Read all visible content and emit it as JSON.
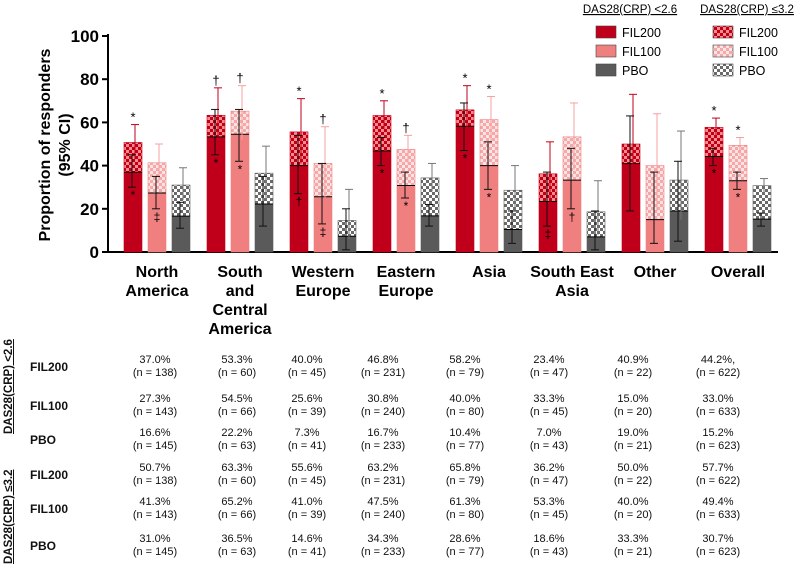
{
  "chart_data": {
    "type": "bar",
    "ylabel": "Proportion of responders\n(95% CI)",
    "ylim": [
      0,
      100
    ],
    "yticks": [
      0,
      20,
      40,
      60,
      80,
      100
    ],
    "categories": [
      "North\nAmerica",
      "South\nand\nCentral\nAmerica",
      "Western\nEurope",
      "Eastern\nEurope",
      "Asia",
      "South East\nAsia",
      "Other",
      "Overall"
    ],
    "legend_headers": [
      "DAS28(CRP) <2.6",
      "DAS28(CRP) ≤3.2"
    ],
    "series": [
      {
        "name": "FIL200",
        "color": "#c0001a",
        "das26": [
          37.0,
          53.3,
          40.0,
          46.8,
          58.2,
          23.4,
          40.9,
          44.2
        ],
        "das32": [
          50.7,
          63.3,
          55.6,
          63.2,
          65.8,
          36.2,
          50.0,
          57.7
        ],
        "ci26": [
          [
            30,
            45
          ],
          [
            45,
            66
          ],
          [
            27,
            54
          ],
          [
            40,
            53
          ],
          [
            47,
            69
          ],
          [
            12,
            37
          ],
          [
            19,
            63
          ],
          [
            40,
            48
          ]
        ],
        "ci32": [
          [
            43,
            59
          ],
          [
            51,
            76
          ],
          [
            41,
            71
          ],
          [
            57,
            70
          ],
          [
            55,
            77
          ],
          [
            23,
            51
          ],
          [
            28,
            73
          ],
          [
            54,
            62
          ]
        ],
        "marks26": [
          "*",
          "*",
          "†",
          "*",
          "*",
          "‡",
          "",
          "*"
        ],
        "marks32": [
          "*",
          "†",
          "*",
          "*",
          "*",
          "",
          "",
          "*"
        ]
      },
      {
        "name": "FIL100",
        "color": "#f08080",
        "das26": [
          27.3,
          54.5,
          25.6,
          30.8,
          40.0,
          33.3,
          15.0,
          33.0
        ],
        "das32": [
          41.3,
          65.2,
          41.0,
          47.5,
          61.3,
          53.3,
          40.0,
          49.4
        ],
        "ci26": [
          [
            20,
            35
          ],
          [
            42,
            66
          ],
          [
            13,
            41
          ],
          [
            25,
            37
          ],
          [
            29,
            51
          ],
          [
            20,
            48
          ],
          [
            4,
            37
          ],
          [
            29,
            37
          ]
        ],
        "ci32": [
          [
            33,
            50
          ],
          [
            52,
            77
          ],
          [
            25,
            58
          ],
          [
            41,
            54
          ],
          [
            50,
            72
          ],
          [
            38,
            69
          ],
          [
            19,
            64
          ],
          [
            45,
            53
          ]
        ],
        "marks26": [
          "‡",
          "*",
          "‡",
          "*",
          "*",
          "†",
          "",
          "*"
        ],
        "marks32": [
          "",
          "†",
          "†",
          "†",
          "*",
          "",
          "",
          "*"
        ]
      },
      {
        "name": "PBO",
        "color": "#5a5a5a",
        "das26": [
          16.6,
          22.2,
          7.3,
          16.7,
          10.4,
          7.0,
          19.0,
          15.2
        ],
        "das32": [
          31.0,
          36.5,
          14.6,
          34.3,
          28.6,
          18.6,
          33.3,
          30.7
        ],
        "ci26": [
          [
            11,
            23
          ],
          [
            12,
            35
          ],
          [
            1,
            20
          ],
          [
            12,
            22
          ],
          [
            4,
            19
          ],
          [
            1,
            19
          ],
          [
            5,
            42
          ],
          [
            12,
            18
          ]
        ],
        "ci32": [
          [
            24,
            39
          ],
          [
            24,
            49
          ],
          [
            6,
            29
          ],
          [
            28,
            41
          ],
          [
            19,
            40
          ],
          [
            8,
            33
          ],
          [
            15,
            56
          ],
          [
            27,
            34
          ]
        ],
        "marks26": [
          "",
          "",
          "",
          "",
          "",
          "",
          "",
          ""
        ],
        "marks32": [
          "",
          "",
          "",
          "",
          "",
          "",
          "",
          ""
        ]
      }
    ]
  },
  "table": {
    "group_labels": [
      "DAS28(CRP) <2.6",
      "DAS28(CRP) ≤3.2"
    ],
    "rows": [
      {
        "label": "FIL200",
        "cells": [
          [
            "37.0%",
            "(n = 138)"
          ],
          [
            "53.3%",
            "(n = 60)"
          ],
          [
            "40.0%",
            "(n = 45)"
          ],
          [
            "46.8%",
            "(n = 231)"
          ],
          [
            "58.2%",
            "(n = 79)"
          ],
          [
            "23.4%",
            "(n = 47)"
          ],
          [
            "40.9%",
            "(n = 22)"
          ],
          [
            "44.2%,",
            "(n = 622)"
          ]
        ]
      },
      {
        "label": "FIL100",
        "cells": [
          [
            "27.3%",
            "(n = 143)"
          ],
          [
            "54.5%",
            "(n = 66)"
          ],
          [
            "25.6%",
            "(n = 39)"
          ],
          [
            "30.8%",
            "(n = 240)"
          ],
          [
            "40.0%",
            "(n = 80)"
          ],
          [
            "33.3%",
            "(n = 45)"
          ],
          [
            "15.0%",
            "(n = 20)"
          ],
          [
            "33.0%",
            "(n = 633)"
          ]
        ]
      },
      {
        "label": "PBO",
        "cells": [
          [
            "16.6%",
            "(n = 145)"
          ],
          [
            "22.2%",
            "(n = 63)"
          ],
          [
            "7.3%",
            "(n = 41)"
          ],
          [
            "16.7%",
            "(n = 233)"
          ],
          [
            "10.4%",
            "(n = 77)"
          ],
          [
            "7.0%",
            "(n = 43)"
          ],
          [
            "19.0%",
            "(n = 21)"
          ],
          [
            "15.2%",
            "(n = 623)"
          ]
        ]
      },
      {
        "label": "FIL200",
        "cells": [
          [
            "50.7%",
            "(n = 138)"
          ],
          [
            "63.3%",
            "(n = 60)"
          ],
          [
            "55.6%",
            "(n = 45)"
          ],
          [
            "63.2%",
            "(n = 231)"
          ],
          [
            "65.8%",
            "(n = 79)"
          ],
          [
            "36.2%",
            "(n = 47)"
          ],
          [
            "50.0%",
            "(n = 22)"
          ],
          [
            "57.7%",
            "(n = 622)"
          ]
        ]
      },
      {
        "label": "FIL100",
        "cells": [
          [
            "41.3%",
            "(n = 143)"
          ],
          [
            "65.2%",
            "(n = 66)"
          ],
          [
            "41.0%",
            "(n = 39)"
          ],
          [
            "47.5%",
            "(n = 240)"
          ],
          [
            "61.3%",
            "(n = 80)"
          ],
          [
            "53.3%",
            "(n = 45)"
          ],
          [
            "40.0%",
            "(n = 20)"
          ],
          [
            "49.4%",
            "(n = 633)"
          ]
        ]
      },
      {
        "label": "PBO",
        "cells": [
          [
            "31.0%",
            "(n = 145)"
          ],
          [
            "36.5%",
            "(n = 63)"
          ],
          [
            "14.6%",
            "(n = 41)"
          ],
          [
            "34.3%",
            "(n = 233)"
          ],
          [
            "28.6%",
            "(n = 77)"
          ],
          [
            "18.6%",
            "(n = 43)"
          ],
          [
            "33.3%",
            "(n = 21)"
          ],
          [
            "30.7%",
            "(n = 623)"
          ]
        ]
      }
    ]
  }
}
